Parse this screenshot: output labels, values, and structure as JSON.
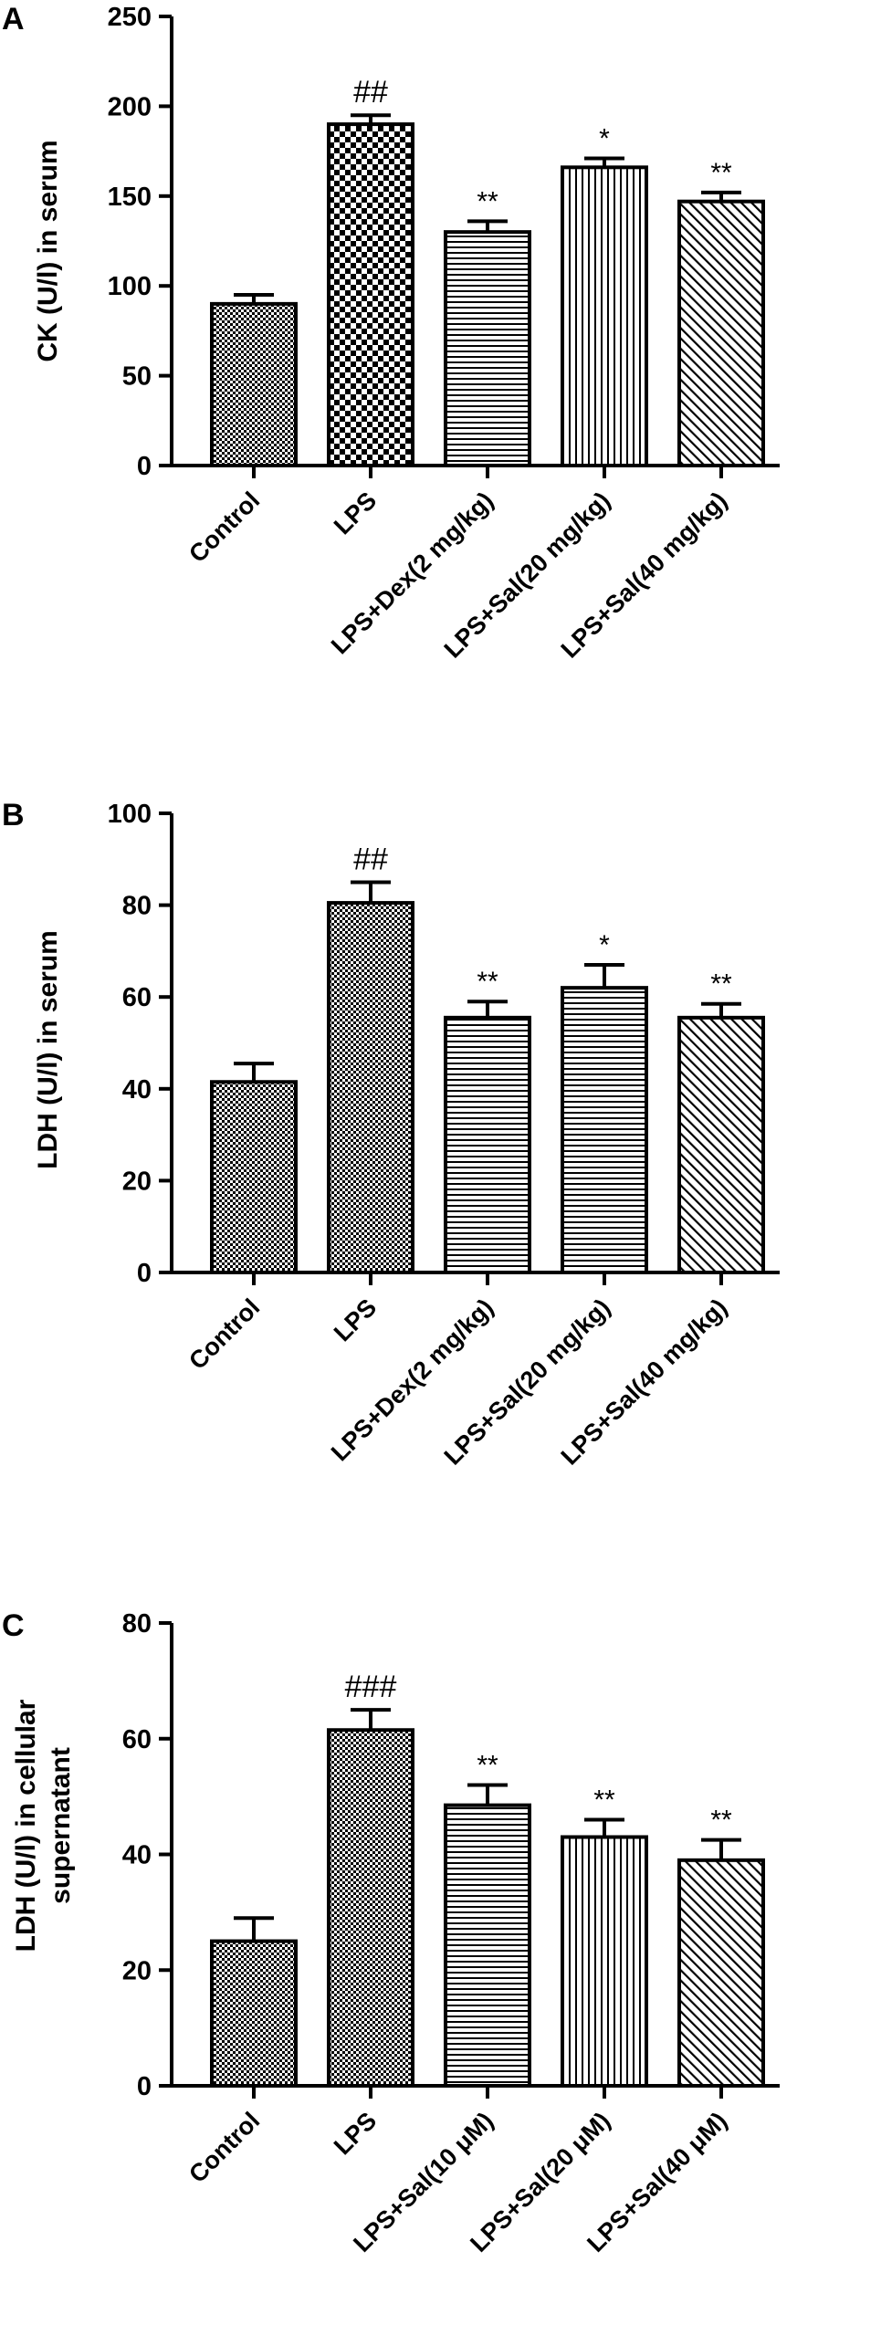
{
  "chart_data": [
    {
      "type": "bar",
      "panel": "A",
      "ylabel": "CK (U/l) in serum",
      "ylim": [
        0,
        250
      ],
      "yticks": [
        0,
        50,
        100,
        150,
        200,
        250
      ],
      "categories": [
        "Control",
        "LPS",
        "LPS+Dex(2 mg/kg)",
        "LPS+Sal(20 mg/kg)",
        "LPS+Sal(40 mg/kg)"
      ],
      "values": [
        90,
        190,
        130,
        166,
        147
      ],
      "errors": [
        5,
        5,
        6,
        5,
        5
      ],
      "annotations": [
        "",
        "##",
        "**",
        "*",
        "**"
      ],
      "patterns": [
        "fine-check",
        "big-check",
        "hlines",
        "vlines",
        "diag"
      ]
    },
    {
      "type": "bar",
      "panel": "B",
      "ylabel": "LDH (U/l) in serum",
      "ylim": [
        0,
        100
      ],
      "yticks": [
        0,
        20,
        40,
        60,
        80,
        100
      ],
      "categories": [
        "Control",
        "LPS",
        "LPS+Dex(2 mg/kg)",
        "LPS+Sal(20 mg/kg)",
        "LPS+Sal(40 mg/kg)"
      ],
      "values": [
        41.5,
        80.5,
        55.5,
        62,
        55.5
      ],
      "errors": [
        4,
        4.5,
        3.5,
        5,
        3
      ],
      "annotations": [
        "",
        "##",
        "**",
        "*",
        "**"
      ],
      "patterns": [
        "fine-check",
        "fine-check",
        "hlines",
        "hlines",
        "diag"
      ]
    },
    {
      "type": "bar",
      "panel": "C",
      "ylabel": "LDH (U/l) in cellular supernatant",
      "ylim": [
        0,
        80
      ],
      "yticks": [
        0,
        20,
        40,
        60,
        80
      ],
      "categories": [
        "Control",
        "LPS",
        "LPS+Sal(10 μM)",
        "LPS+Sal(20 μM)",
        "LPS+Sal(40 μM)"
      ],
      "values": [
        25,
        61.5,
        48.5,
        43,
        39
      ],
      "errors": [
        4,
        3.5,
        3.5,
        3,
        3.5
      ],
      "annotations": [
        "",
        "###",
        "**",
        "**",
        "**"
      ],
      "patterns": [
        "fine-check",
        "fine-check",
        "hlines",
        "vlines",
        "diag"
      ]
    }
  ]
}
